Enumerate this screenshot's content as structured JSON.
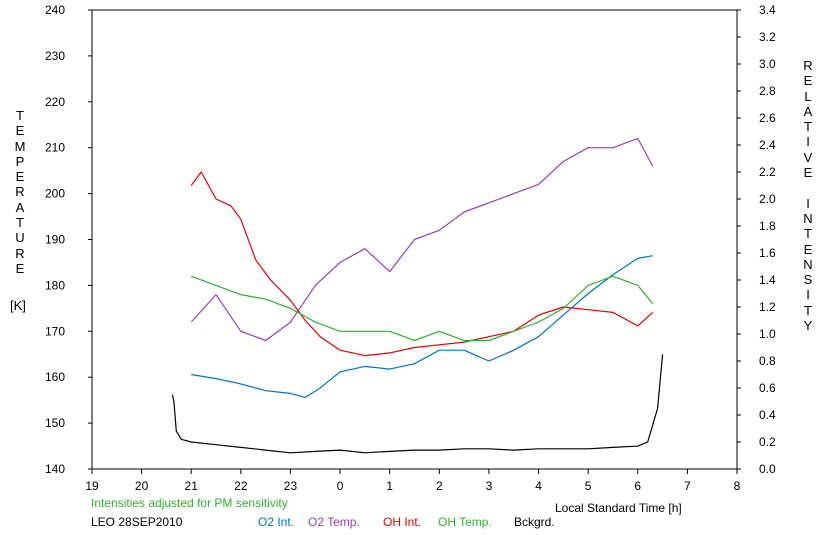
{
  "chart_data": {
    "type": "line",
    "left_axis": {
      "label_letters": [
        "T",
        "E",
        "M",
        "P",
        "E",
        "R",
        "A",
        "T",
        "U",
        "R",
        "E"
      ],
      "unit": "[K]",
      "range": [
        140,
        240
      ],
      "ticks": [
        140,
        150,
        160,
        170,
        180,
        190,
        200,
        210,
        220,
        230,
        240
      ]
    },
    "right_axis": {
      "label_letters": [
        "R",
        "E",
        "L",
        "A",
        "T",
        "I",
        "V",
        "E",
        "",
        "I",
        "N",
        "T",
        "E",
        "N",
        "S",
        "I",
        "T",
        "Y"
      ],
      "range": [
        0.0,
        3.4
      ],
      "ticks": [
        "0.0",
        "0.2",
        "0.4",
        "0.6",
        "0.8",
        "1.0",
        "1.2",
        "1.4",
        "1.6",
        "1.8",
        "2.0",
        "2.2",
        "2.4",
        "2.6",
        "2.8",
        "3.0",
        "3.2",
        "3.4"
      ]
    },
    "x_axis": {
      "label": "Local Standard Time [h]",
      "range": [
        19,
        32
      ],
      "ticks": [
        {
          "v": 19,
          "t": "19"
        },
        {
          "v": 20,
          "t": "20"
        },
        {
          "v": 21,
          "t": "21"
        },
        {
          "v": 22,
          "t": "22"
        },
        {
          "v": 23,
          "t": "23"
        },
        {
          "v": 24,
          "t": "0"
        },
        {
          "v": 25,
          "t": "1"
        },
        {
          "v": 26,
          "t": "2"
        },
        {
          "v": 27,
          "t": "3"
        },
        {
          "v": 28,
          "t": "4"
        },
        {
          "v": 29,
          "t": "5"
        },
        {
          "v": 30,
          "t": "6"
        },
        {
          "v": 31,
          "t": "7"
        },
        {
          "v": 32,
          "t": "8"
        }
      ]
    },
    "series": [
      {
        "name": "O2 Int.",
        "axis": "right",
        "color": "#0070d0",
        "x": [
          21.0,
          21.5,
          22.0,
          22.5,
          23.0,
          23.3,
          23.6,
          24.0,
          24.5,
          25.0,
          25.5,
          26.0,
          26.5,
          27.0,
          27.5,
          28.0,
          28.5,
          29.0,
          29.5,
          30.0,
          30.3
        ],
        "y": [
          0.7,
          0.67,
          0.63,
          0.58,
          0.56,
          0.53,
          0.6,
          0.72,
          0.76,
          0.74,
          0.78,
          0.88,
          0.88,
          0.8,
          0.88,
          0.98,
          1.14,
          1.3,
          1.44,
          1.56,
          1.58
        ]
      },
      {
        "name": "O2 Temp.",
        "axis": "left",
        "color": "#9040c0",
        "x": [
          21.0,
          21.5,
          22.0,
          22.5,
          23.0,
          23.5,
          24.0,
          24.5,
          25.0,
          25.5,
          26.0,
          26.5,
          27.0,
          27.5,
          28.0,
          28.5,
          29.0,
          29.5,
          30.0,
          30.3
        ],
        "y": [
          172,
          178,
          170,
          168,
          172,
          180,
          185,
          188,
          183,
          190,
          192,
          196,
          198,
          200,
          202,
          207,
          210,
          210,
          212,
          206
        ]
      },
      {
        "name": "OH Int.",
        "axis": "right",
        "color": "#e00000",
        "x": [
          21.0,
          21.2,
          21.5,
          21.8,
          22.0,
          22.3,
          22.6,
          23.0,
          23.3,
          23.6,
          24.0,
          24.5,
          25.0,
          25.5,
          26.0,
          26.5,
          27.0,
          27.5,
          28.0,
          28.5,
          29.0,
          29.5,
          30.0,
          30.3
        ],
        "y": [
          2.1,
          2.2,
          2.0,
          1.95,
          1.85,
          1.55,
          1.4,
          1.25,
          1.1,
          0.98,
          0.88,
          0.84,
          0.86,
          0.9,
          0.92,
          0.94,
          0.98,
          1.02,
          1.14,
          1.2,
          1.18,
          1.16,
          1.06,
          1.16
        ]
      },
      {
        "name": "OH Temp.",
        "axis": "left",
        "color": "#30b030",
        "x": [
          21.0,
          21.5,
          22.0,
          22.5,
          23.0,
          23.5,
          24.0,
          24.5,
          25.0,
          25.5,
          26.0,
          26.5,
          27.0,
          27.5,
          28.0,
          28.5,
          29.0,
          29.5,
          30.0,
          30.3
        ],
        "y": [
          182,
          180,
          178,
          177,
          175,
          172,
          170,
          170,
          170,
          168,
          170,
          168,
          168,
          170,
          172,
          175,
          180,
          182,
          180,
          176
        ]
      },
      {
        "name": "Bckgrd.",
        "axis": "right",
        "color": "#000000",
        "x": [
          20.62,
          20.65,
          20.7,
          20.8,
          21.0,
          21.5,
          22.0,
          22.5,
          23.0,
          23.5,
          24.0,
          24.5,
          25.0,
          25.5,
          26.0,
          26.5,
          27.0,
          27.5,
          28.0,
          28.5,
          29.0,
          29.5,
          30.0,
          30.2,
          30.4,
          30.5
        ],
        "y": [
          0.55,
          0.5,
          0.28,
          0.22,
          0.2,
          0.18,
          0.16,
          0.14,
          0.12,
          0.13,
          0.14,
          0.12,
          0.13,
          0.14,
          0.14,
          0.15,
          0.15,
          0.14,
          0.15,
          0.15,
          0.15,
          0.16,
          0.17,
          0.2,
          0.45,
          0.85
        ]
      }
    ]
  },
  "footer": {
    "note": "Intensities adjusted for PM sensitivity",
    "note_color": "#30b030",
    "station": "LEO 28SEP2010",
    "legend": [
      {
        "label": "O2 Int.",
        "color": "#0070d0"
      },
      {
        "label": "O2 Temp.",
        "color": "#9040c0"
      },
      {
        "label": "OH Int.",
        "color": "#e00000"
      },
      {
        "label": "OH Temp.",
        "color": "#30b030"
      },
      {
        "label": "Bckgrd.",
        "color": "#000000"
      }
    ]
  }
}
